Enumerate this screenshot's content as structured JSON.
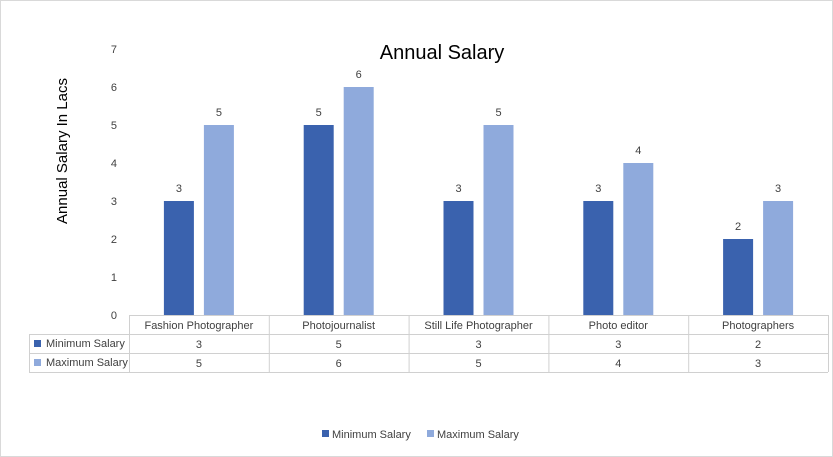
{
  "chart_data": {
    "type": "bar",
    "title": "Annual Salary",
    "ylabel": "Annual Salary In Lacs",
    "xlabel": "",
    "ylim": [
      0,
      7
    ],
    "yticks": [
      "0",
      "1",
      "2",
      "3",
      "4",
      "5",
      "6",
      "7"
    ],
    "grid": false,
    "legend_position": "bottom",
    "data_table": true,
    "categories": [
      "Fashion Photographer",
      "Photojournalist",
      "Still Life Photographer",
      "Photo editor",
      "Photographers"
    ],
    "series": [
      {
        "name": "Minimum Salary",
        "color": "#3a62ae",
        "values": [
          3,
          5,
          3,
          3,
          2
        ]
      },
      {
        "name": "Maximum Salary",
        "color": "#8faadc",
        "values": [
          5,
          6,
          5,
          4,
          3
        ]
      }
    ]
  }
}
